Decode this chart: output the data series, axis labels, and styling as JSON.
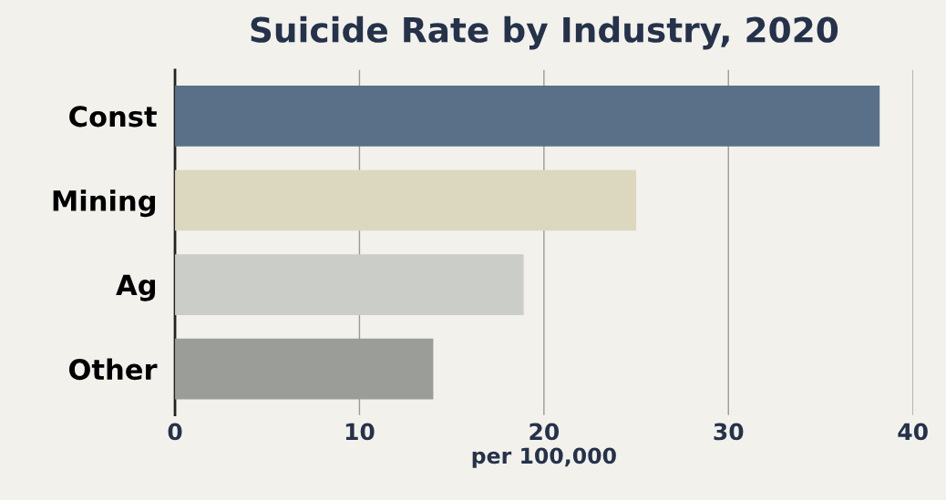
{
  "chart_data": {
    "type": "bar",
    "orientation": "horizontal",
    "title": "Suicide Rate by Industry, 2020",
    "xlabel": "per 100,000",
    "categories": [
      "Const",
      "Mining",
      "Ag",
      "Other"
    ],
    "values": [
      38.2,
      25.0,
      18.9,
      14.0
    ],
    "colors": [
      "#5a7088",
      "#dcd8c0",
      "#cbcdc9",
      "#9b9d99"
    ],
    "xlim": [
      0,
      40
    ],
    "xticks": [
      0,
      10,
      20,
      30,
      40
    ],
    "grid": "x"
  }
}
